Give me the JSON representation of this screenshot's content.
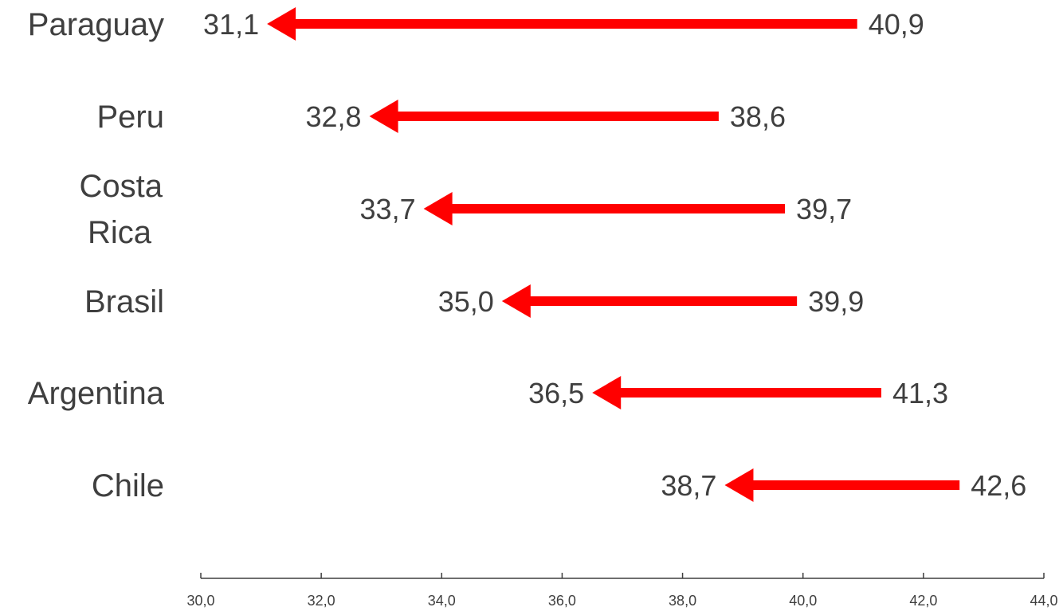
{
  "chart_data": {
    "type": "dumbbell-arrow",
    "title": "",
    "xlabel": "",
    "ylabel": "",
    "xlim": [
      30,
      44
    ],
    "xticks": [
      30,
      32,
      34,
      36,
      38,
      40,
      42,
      44
    ],
    "xtick_labels": [
      "30,0",
      "32,0",
      "34,0",
      "36,0",
      "38,0",
      "40,0",
      "42,0",
      "44,0"
    ],
    "grid": false,
    "legend": "none",
    "arrow_color": "#ff0000",
    "text_color": "#3f3f3f",
    "axis_color": "#3f3f3f",
    "rows": [
      {
        "category": "Paraguay",
        "category_lines": [
          "Paraguay"
        ],
        "from": 40.9,
        "to": 31.1,
        "from_label": "40,9",
        "to_label": "31,1"
      },
      {
        "category": "Peru",
        "category_lines": [
          "Peru"
        ],
        "from": 38.6,
        "to": 32.8,
        "from_label": "38,6",
        "to_label": "32,8"
      },
      {
        "category": "Costa Rica",
        "category_lines": [
          "Costa",
          "Rica"
        ],
        "from": 39.7,
        "to": 33.7,
        "from_label": "39,7",
        "to_label": "33,7"
      },
      {
        "category": "Brasil",
        "category_lines": [
          "Brasil"
        ],
        "from": 39.9,
        "to": 35.0,
        "from_label": "39,9",
        "to_label": "35,0"
      },
      {
        "category": "Argentina",
        "category_lines": [
          "Argentina"
        ],
        "from": 41.3,
        "to": 36.5,
        "from_label": "41,3",
        "to_label": "36,5"
      },
      {
        "category": "Chile",
        "category_lines": [
          "Chile"
        ],
        "from": 42.6,
        "to": 38.7,
        "from_label": "42,6",
        "to_label": "38,7"
      }
    ]
  }
}
